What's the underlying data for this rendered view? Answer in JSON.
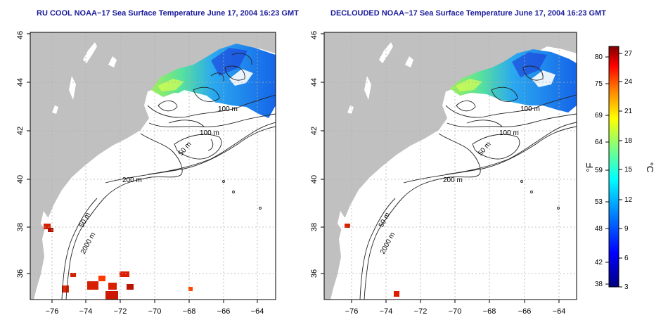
{
  "panels": [
    {
      "title": "RU COOL NOAA−17 Sea Surface Temperature June 17, 2004 16:23 GMT"
    },
    {
      "title": "DECLOUDED NOAA−17 Sea Surface Temperature June 17, 2004 16:23 GMT"
    }
  ],
  "axes": {
    "x_ticks": [
      "−76",
      "−74",
      "−72",
      "−70",
      "−68",
      "−66",
      "−64"
    ],
    "y_ticks": [
      "36",
      "38",
      "40",
      "42",
      "44",
      "46"
    ]
  },
  "contours": {
    "labels": [
      "100 m",
      "100 m",
      "50 m",
      "200 m",
      "50 m",
      "2000 m"
    ]
  },
  "colorbar": {
    "fahrenheit_ticks": [
      "80",
      "75",
      "69",
      "64",
      "59",
      "53",
      "48",
      "42",
      "38"
    ],
    "celsius_ticks": [
      "27",
      "24",
      "21",
      "18",
      "15",
      "12",
      "9",
      "6",
      "3"
    ],
    "fahrenheit_label": "°F",
    "celsius_label": "°C",
    "colors": [
      "#00007f",
      "#0000ff",
      "#007fff",
      "#00ffff",
      "#7fff7f",
      "#ffff00",
      "#ff7f00",
      "#ff0000",
      "#7f0000"
    ]
  },
  "colors": {
    "land": "#c0c0c0",
    "title": "#1a1a9c"
  }
}
